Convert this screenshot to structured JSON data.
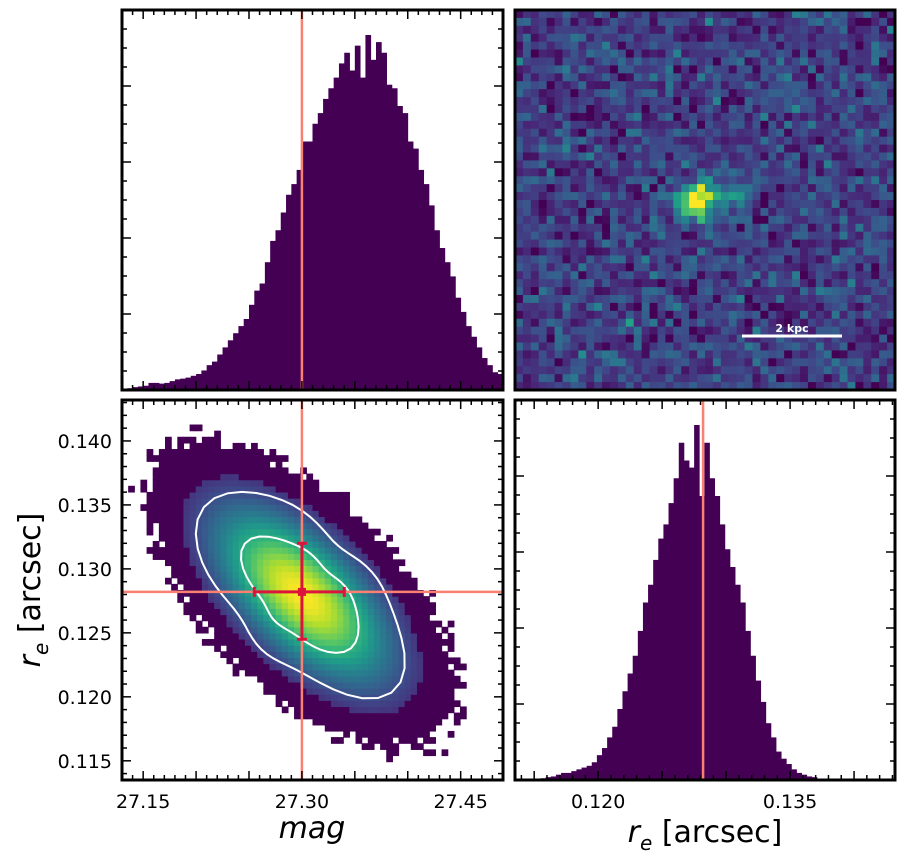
{
  "chart_data": [
    {
      "type": "histogram",
      "panel": "top-left",
      "variable": "mag",
      "xlim": [
        27.13,
        27.49
      ],
      "bin_edges_start": 27.135,
      "bin_width": 0.005,
      "bin_heights_relative": [
        0.005,
        0.008,
        0.01,
        0.012,
        0.02,
        0.02,
        0.018,
        0.02,
        0.025,
        0.03,
        0.032,
        0.035,
        0.04,
        0.045,
        0.055,
        0.07,
        0.08,
        0.1,
        0.12,
        0.14,
        0.16,
        0.18,
        0.2,
        0.24,
        0.28,
        0.3,
        0.36,
        0.42,
        0.45,
        0.5,
        0.55,
        0.58,
        0.62,
        0.7,
        0.7,
        0.75,
        0.78,
        0.82,
        0.85,
        0.88,
        0.92,
        0.95,
        0.9,
        0.97,
        0.88,
        1.0,
        0.93,
        0.98,
        0.95,
        0.86,
        0.85,
        0.8,
        0.78,
        0.7,
        0.68,
        0.62,
        0.58,
        0.52,
        0.45,
        0.4,
        0.36,
        0.32,
        0.26,
        0.22,
        0.18,
        0.15,
        0.12,
        0.09,
        0.07,
        0.05,
        0.045,
        0.03,
        0.025,
        0.02,
        0.012
      ],
      "vline": 27.3,
      "vline_color": "#fa8072",
      "bar_color": "#440154"
    },
    {
      "type": "image",
      "panel": "top-right",
      "scale_bar_label": "2 kpc",
      "colormap": "viridis"
    },
    {
      "type": "heatmap",
      "panel": "bottom-left",
      "xlabel": "mag",
      "ylabel": "r_e [arcsec]",
      "ylabel_main": "r",
      "ylabel_sub": "e",
      "ylabel_rest": " [arcsec]",
      "xlim": [
        27.13,
        27.49
      ],
      "ylim": [
        0.1135,
        0.1432
      ],
      "xticks": [
        27.15,
        27.3,
        27.45
      ],
      "xtick_labels": [
        "27.15",
        "27.30",
        "27.45"
      ],
      "yticks": [
        0.115,
        0.12,
        0.125,
        0.13,
        0.135,
        0.14
      ],
      "ytick_labels": [
        "0.115",
        "0.120",
        "0.125",
        "0.130",
        "0.135",
        "0.140"
      ],
      "center": {
        "mag": 27.3,
        "re": 0.128
      },
      "best_fit": {
        "mag": 27.3,
        "re": 0.1282
      },
      "mag_err": [
        0.045,
        0.04
      ],
      "re_err": [
        0.0037,
        0.0038
      ],
      "correlation": -0.62,
      "sigma_mag": 0.055,
      "sigma_re": 0.0045,
      "vline": 27.3,
      "hline": 0.1282,
      "line_color": "#fa8072",
      "errorbar_color": "#dc143c",
      "contour_color": "#ffffff"
    },
    {
      "type": "histogram",
      "panel": "bottom-right",
      "variable": "r_e",
      "xlabel": "r_e [arcsec]",
      "xlabel_main": "r",
      "xlabel_sub": "e",
      "xlabel_rest": " [arcsec]",
      "xlim": [
        0.1135,
        0.1432
      ],
      "xticks": [
        0.12,
        0.135
      ],
      "xtick_labels": [
        "0.120",
        "0.135"
      ],
      "bin_edges_start": 0.1155,
      "bin_width": 0.0004,
      "bin_heights_relative": [
        0.005,
        0.008,
        0.01,
        0.015,
        0.02,
        0.02,
        0.025,
        0.03,
        0.035,
        0.04,
        0.05,
        0.07,
        0.09,
        0.12,
        0.15,
        0.2,
        0.25,
        0.3,
        0.35,
        0.42,
        0.5,
        0.55,
        0.62,
        0.68,
        0.72,
        0.78,
        0.85,
        0.95,
        0.9,
        0.88,
        1.0,
        0.8,
        0.95,
        0.85,
        0.8,
        0.72,
        0.65,
        0.6,
        0.55,
        0.5,
        0.42,
        0.35,
        0.28,
        0.22,
        0.16,
        0.12,
        0.08,
        0.06,
        0.045,
        0.03,
        0.02,
        0.015,
        0.01,
        0.008
      ],
      "vline": 0.1282,
      "vline_color": "#fa8072",
      "bar_color": "#440154"
    }
  ]
}
